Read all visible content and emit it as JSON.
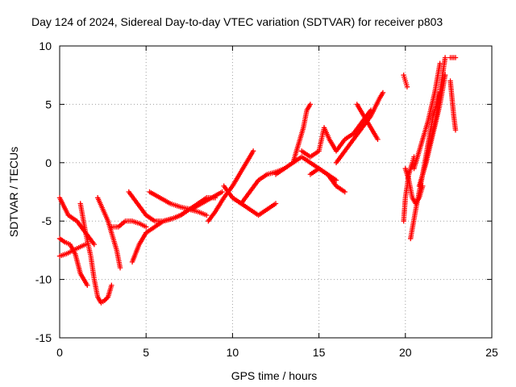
{
  "chart_data": {
    "type": "scatter",
    "title": "Day 124 of 2024, Sidereal Day-to-day VTEC variation (SDTVAR) for receiver p803",
    "xlabel": "GPS time / hours",
    "ylabel": "SDTVAR / TECUs",
    "xlim": [
      0,
      25
    ],
    "ylim": [
      -15,
      10
    ],
    "xticks": [
      0,
      5,
      10,
      15,
      20,
      25
    ],
    "yticks": [
      -15,
      -10,
      -5,
      0,
      5,
      10
    ],
    "grid": true,
    "marker": "plus",
    "color": "#ff0000",
    "series": [
      {
        "x": [
          0.0,
          0.5,
          1.0,
          1.5,
          2.0
        ],
        "y": [
          -3.0,
          -4.5,
          -5.0,
          -6.0,
          -7.0
        ]
      },
      {
        "x": [
          0.0,
          0.3,
          0.6,
          0.9,
          1.2,
          1.6
        ],
        "y": [
          -6.5,
          -6.8,
          -7.0,
          -7.8,
          -9.5,
          -10.5
        ]
      },
      {
        "x": [
          0.0,
          0.4,
          0.8,
          1.2,
          1.5
        ],
        "y": [
          -8.0,
          -7.8,
          -7.5,
          -7.2,
          -7.0
        ]
      },
      {
        "x": [
          1.2,
          1.5,
          1.8,
          2.0,
          2.2,
          2.4,
          2.6,
          2.8,
          3.0
        ],
        "y": [
          -3.5,
          -6.0,
          -8.0,
          -10.0,
          -11.5,
          -12.0,
          -11.8,
          -11.5,
          -10.5
        ]
      },
      {
        "x": [
          2.2,
          2.5,
          2.8,
          3.0,
          3.3,
          3.5
        ],
        "y": [
          -3.0,
          -4.0,
          -5.0,
          -6.0,
          -7.5,
          -9.0
        ]
      },
      {
        "x": [
          3.0,
          3.4,
          3.8,
          4.2,
          4.6,
          5.0
        ],
        "y": [
          -5.5,
          -5.5,
          -5.0,
          -5.0,
          -5.2,
          -5.5
        ]
      },
      {
        "x": [
          4.0,
          4.5,
          5.0,
          5.5,
          6.0,
          6.5,
          7.0,
          7.5,
          8.0,
          8.5
        ],
        "y": [
          -2.5,
          -3.5,
          -4.5,
          -5.0,
          -5.0,
          -4.8,
          -4.5,
          -4.0,
          -4.2,
          -4.5
        ]
      },
      {
        "x": [
          4.2,
          4.6,
          5.0,
          5.5,
          6.0,
          6.5,
          7.0,
          7.5,
          8.0,
          8.5,
          9.0
        ],
        "y": [
          -8.5,
          -7.0,
          -6.0,
          -5.5,
          -5.0,
          -4.8,
          -4.5,
          -4.0,
          -3.5,
          -3.0,
          -3.0
        ]
      },
      {
        "x": [
          5.2,
          5.8,
          6.4,
          7.0,
          7.6,
          8.2,
          8.8,
          9.4
        ],
        "y": [
          -2.5,
          -3.0,
          -3.5,
          -3.8,
          -4.0,
          -3.5,
          -3.0,
          -2.5
        ]
      },
      {
        "x": [
          8.6,
          9.0,
          9.5,
          10.0,
          10.4,
          10.8,
          11.2
        ],
        "y": [
          -5.0,
          -4.2,
          -3.0,
          -2.0,
          -1.0,
          0.0,
          1.0
        ]
      },
      {
        "x": [
          9.5,
          10.0,
          10.5,
          11.0,
          11.5,
          12.0,
          12.5,
          13.0
        ],
        "y": [
          -2.0,
          -3.0,
          -3.5,
          -2.5,
          -1.5,
          -1.0,
          -0.8,
          -0.5
        ]
      },
      {
        "x": [
          10.0,
          10.5,
          11.0,
          11.5,
          12.0,
          12.5
        ],
        "y": [
          -3.0,
          -3.5,
          -4.0,
          -4.5,
          -4.0,
          -3.5
        ]
      },
      {
        "x": [
          12.5,
          13.0,
          13.5,
          14.0,
          14.5,
          15.0,
          15.5,
          16.0
        ],
        "y": [
          -1.0,
          -0.5,
          0.0,
          0.5,
          0.0,
          -0.5,
          -1.0,
          -1.5
        ]
      },
      {
        "x": [
          13.5,
          13.7,
          13.9,
          14.1,
          14.3,
          14.5
        ],
        "y": [
          0.0,
          1.0,
          2.0,
          3.0,
          4.5,
          5.0
        ]
      },
      {
        "x": [
          14.5,
          15.0,
          15.5,
          16.0,
          16.5
        ],
        "y": [
          -1.0,
          -0.5,
          -1.0,
          -2.0,
          -2.5
        ]
      },
      {
        "x": [
          14.0,
          14.5,
          15.0,
          15.3,
          15.6,
          16.0,
          16.5,
          17.0,
          17.5,
          18.0
        ],
        "y": [
          1.0,
          0.5,
          1.0,
          3.0,
          2.0,
          1.0,
          2.0,
          2.5,
          3.5,
          4.5
        ]
      },
      {
        "x": [
          16.0,
          16.5,
          17.0,
          17.5,
          18.0,
          18.5,
          18.7
        ],
        "y": [
          0.0,
          1.0,
          2.0,
          3.0,
          4.0,
          5.5,
          6.0
        ]
      },
      {
        "x": [
          17.2,
          17.6,
          18.0,
          18.4
        ],
        "y": [
          5.0,
          4.0,
          3.0,
          2.0
        ]
      },
      {
        "x": [
          19.9,
          20.0,
          20.1
        ],
        "y": [
          7.5,
          7.0,
          6.5
        ]
      },
      {
        "x": [
          19.9,
          20.0,
          20.2,
          20.4,
          20.5
        ],
        "y": [
          -5.0,
          -3.0,
          -1.0,
          0.0,
          0.5
        ]
      },
      {
        "x": [
          20.0,
          20.2,
          20.4,
          20.6,
          20.8,
          21.0
        ],
        "y": [
          -0.5,
          -1.5,
          -3.0,
          -3.5,
          -3.0,
          -2.0
        ]
      },
      {
        "x": [
          20.3,
          20.6,
          21.0,
          21.3,
          21.6,
          22.0
        ],
        "y": [
          -6.5,
          -4.0,
          -1.0,
          1.5,
          4.0,
          6.0
        ]
      },
      {
        "x": [
          20.5,
          20.9,
          21.3,
          21.7,
          22.0
        ],
        "y": [
          -0.5,
          1.5,
          3.5,
          6.0,
          8.5
        ]
      },
      {
        "x": [
          20.8,
          21.2,
          21.6,
          22.0,
          22.3
        ],
        "y": [
          -2.0,
          0.0,
          2.5,
          5.0,
          7.5
        ]
      },
      {
        "x": [
          21.0,
          21.4,
          21.8,
          22.1,
          22.3
        ],
        "y": [
          -1.0,
          1.5,
          4.0,
          7.0,
          9.0
        ]
      },
      {
        "x": [
          22.6,
          22.9
        ],
        "y": [
          9.0,
          9.0
        ]
      },
      {
        "x": [
          22.6,
          22.7,
          22.8,
          22.9
        ],
        "y": [
          7.0,
          5.5,
          4.0,
          2.8
        ]
      }
    ]
  }
}
